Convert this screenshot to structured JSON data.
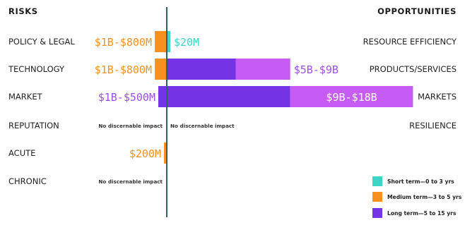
{
  "chart_data": {
    "type": "bar",
    "headers": {
      "left": "RISKS",
      "right": "OPPORTUNITIES"
    },
    "risks": [
      {
        "category": "POLICY & LEGAL",
        "value_label": "$1B-$800M",
        "label_color": "#f7901e",
        "segments": [
          {
            "term": "medium",
            "weight": 1
          }
        ],
        "note": ""
      },
      {
        "category": "TECHNOLOGY",
        "value_label": "$1B-$800M",
        "label_color": "#f7901e",
        "segments": [
          {
            "term": "medium",
            "weight": 1
          }
        ],
        "note": ""
      },
      {
        "category": "MARKET",
        "value_label": "$1B-$500M",
        "label_color": "#9c4fe6",
        "segments": [
          {
            "term": "long",
            "weight": 1
          }
        ],
        "note": ""
      },
      {
        "category": "REPUTATION",
        "value_label": "",
        "label_color": "",
        "segments": [],
        "note": "No discernable impact"
      },
      {
        "category": "ACUTE",
        "value_label": "$200M",
        "label_color": "#f7901e",
        "segments": [
          {
            "term": "medium",
            "weight": 1
          }
        ],
        "note": ""
      },
      {
        "category": "CHRONIC",
        "value_label": "",
        "label_color": "",
        "segments": [],
        "note": "No discernable impact"
      }
    ],
    "opportunities": [
      {
        "category": "RESOURCE EFFICIENCY",
        "value_label": "$20M",
        "label_color": "#3dd6c6",
        "label_position": "outside",
        "segments": [
          {
            "term": "short",
            "weight": 1
          }
        ],
        "note": ""
      },
      {
        "category": "PRODUCTS/SERVICES",
        "value_label": "$5B-$9B",
        "label_color": "#9c4fe6",
        "label_position": "outside",
        "segments": [
          {
            "term": "long",
            "weight": 5
          },
          {
            "term": "range",
            "weight": 4
          }
        ],
        "note": ""
      },
      {
        "category": "MARKETS",
        "value_label": "$9B-$18B",
        "label_color": "#ffffff",
        "label_position": "inside",
        "segments": [
          {
            "term": "long",
            "weight": 9
          },
          {
            "term": "range",
            "weight": 9
          }
        ],
        "note": ""
      },
      {
        "category": "RESILIENCE",
        "value_label": "",
        "label_color": "",
        "label_position": "outside",
        "segments": [],
        "note": "No discernable impact"
      }
    ],
    "term_colors": {
      "short": "#3dd6c6",
      "medium": "#f7901e",
      "long": "#7434e6",
      "range": "#c75cf5"
    },
    "legend": [
      {
        "term": "short",
        "label": "Short term—0 to 3 yrs"
      },
      {
        "term": "medium",
        "label": "Medium term—3 to 5 yrs"
      },
      {
        "term": "long",
        "label": "Long term—5 to 15 yrs"
      }
    ],
    "scale": "relative bar lengths; values are printed as ranges"
  }
}
